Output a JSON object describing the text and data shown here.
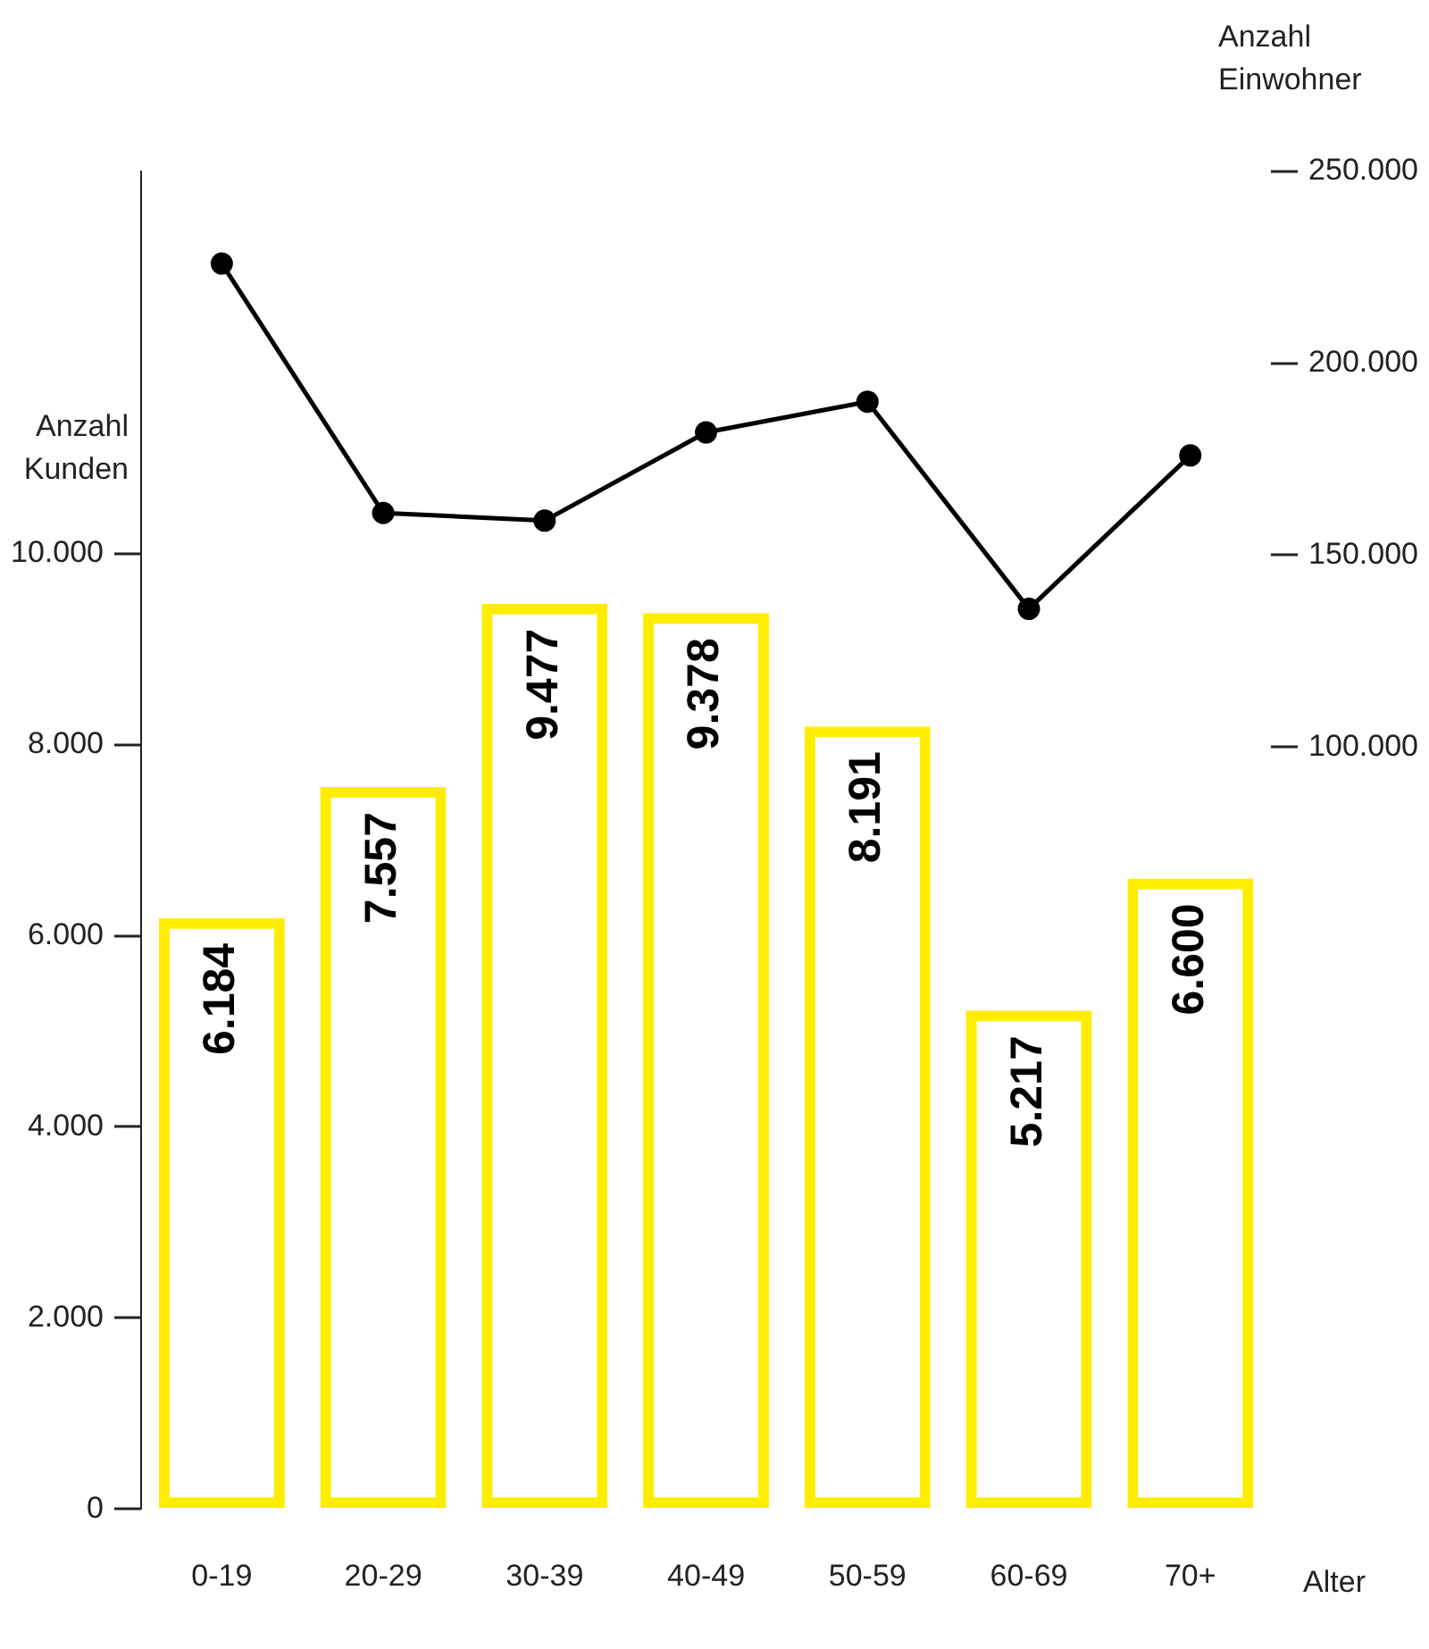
{
  "chart_data": {
    "type": "bar",
    "xlabel": "Alter",
    "ylabel": "Anzahl Kunden",
    "y2label": "Anzahl Einwohner",
    "categories": [
      "0-19",
      "20-29",
      "30-39",
      "40-49",
      "50-59",
      "60-69",
      "70+"
    ],
    "series": [
      {
        "color": "#ffed00",
        "values": [
          6184,
          7557,
          9477,
          9378,
          8191,
          5217,
          6600
        ],
        "value_labels": [
          "6.184",
          "7.557",
          "9.477",
          "9.378",
          "8.191",
          "5.217",
          "6.600"
        ]
      },
      {
        "type": "line",
        "axis": "y2",
        "color": "#000000",
        "values": [
          226000,
          161000,
          159000,
          182000,
          190000,
          136000,
          176000
        ]
      }
    ],
    "ylim": [
      0,
      14000
    ],
    "yticks": [
      0,
      {
        "value": 2000,
        "label": "2.000"
      },
      {
        "value": 4000,
        "label": "4.000"
      },
      {
        "value": 6000,
        "label": "6.000"
      },
      {
        "value": 8000,
        "label": "8.000"
      },
      {
        "value": 10000,
        "label": "10.000"
      }
    ],
    "y2lim": [
      -98600,
      250000
    ],
    "y2ticks": [
      {
        "value": 100000,
        "label": "100.000"
      },
      {
        "value": 150000,
        "label": "150.000"
      },
      {
        "value": 200000,
        "label": "200.000"
      },
      {
        "value": 250000,
        "label": "250.000"
      }
    ],
    "grid": false,
    "marker": "circle",
    "line_style": "solid"
  }
}
